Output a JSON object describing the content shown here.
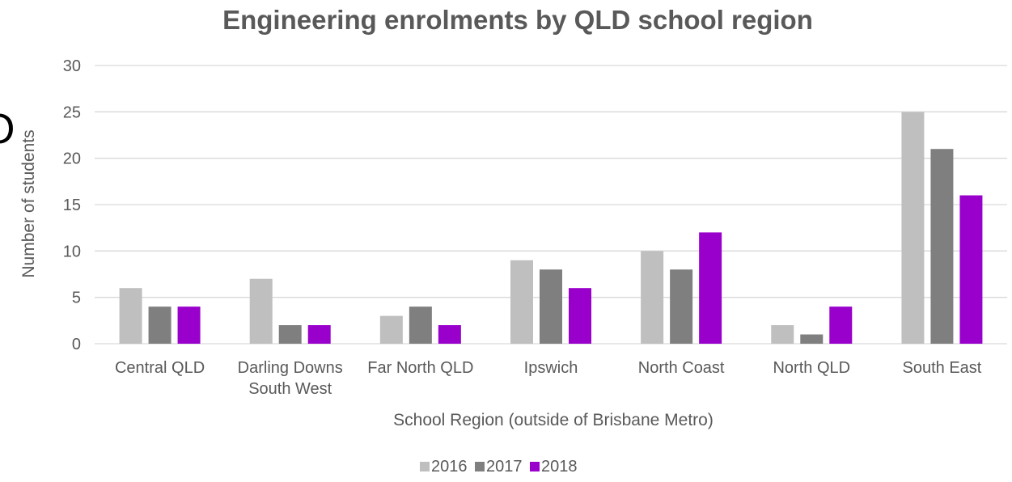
{
  "chart_data": {
    "type": "bar",
    "title": "Engineering enrolments by QLD school region",
    "xlabel": "School Region (outside of Brisbane Metro)",
    "ylabel": "Number of students",
    "ylim": [
      0,
      30
    ],
    "yticks": [
      0,
      5,
      10,
      15,
      20,
      25,
      30
    ],
    "grid": true,
    "legend_position": "bottom",
    "categories": [
      [
        "Central QLD"
      ],
      [
        "Darling Downs",
        "South West"
      ],
      [
        "Far North QLD"
      ],
      [
        "Ipswich"
      ],
      [
        "North Coast"
      ],
      [
        "North QLD"
      ],
      [
        "South East"
      ]
    ],
    "series": [
      {
        "name": "2016",
        "color": "#bfbfbf",
        "values": [
          6,
          7,
          3,
          9,
          10,
          2,
          25
        ]
      },
      {
        "name": "2017",
        "color": "#7f7f7f",
        "values": [
          4,
          2,
          4,
          8,
          8,
          1,
          21
        ]
      },
      {
        "name": "2018",
        "color": "#9900cc",
        "values": [
          4,
          2,
          2,
          6,
          12,
          4,
          16
        ]
      }
    ]
  },
  "edge_fragment": "O"
}
